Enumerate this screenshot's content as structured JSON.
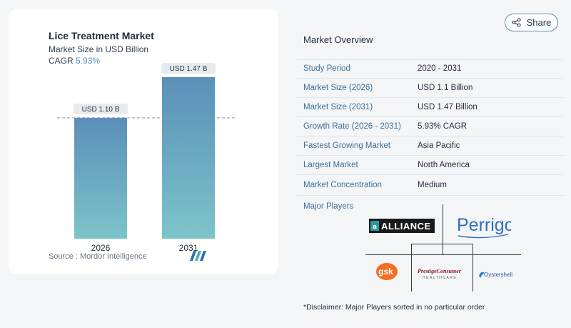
{
  "share": {
    "label": "Share",
    "icon": "share-icon"
  },
  "chart": {
    "title": "Lice Treatment Market",
    "subtitle": "Market Size in USD Billion",
    "cagr_label": "CAGR",
    "cagr_value": "5.93%",
    "source": "Source :  Mordor Intelligence",
    "colors": {
      "bar_top": "#5b8fb9",
      "bar_bottom": "#7cc4c9",
      "label_bg": "#e6ebef"
    }
  },
  "chart_data": {
    "type": "bar",
    "categories": [
      "2026",
      "2031"
    ],
    "values": [
      1.1,
      1.47
    ],
    "data_labels": [
      "USD 1.10 B",
      "USD 1.47 B"
    ],
    "title": "Lice Treatment Market",
    "subtitle": "Market Size in USD Billion",
    "xlabel": "",
    "ylabel": "",
    "ylim": [
      0,
      1.6
    ],
    "grid": false,
    "reference_line": 1.1
  },
  "overview": {
    "title": "Market Overview",
    "rows": [
      {
        "label": "Study Period",
        "value": "2020 - 2031"
      },
      {
        "label": "Market Size (2026)",
        "value": "USD 1.1 Billion"
      },
      {
        "label": "Market Size (2031)",
        "value": "USD 1.47 Billion"
      },
      {
        "label": "Growth Rate (2026 - 2031)",
        "value": "5.93% CAGR"
      },
      {
        "label": "Fastest Growing Market",
        "value": "Asia Pacific"
      },
      {
        "label": "Largest Market",
        "value": "North America"
      },
      {
        "label": "Market Concentration",
        "value": "Medium"
      }
    ]
  },
  "players": {
    "title": "Major Players",
    "logos": {
      "alliance": "ALLIANCE",
      "perrigo": "Perrigo",
      "gsk": "gsk",
      "prestige_main": "PrestigeConsumer",
      "prestige_sub": "HEALTHCARE",
      "oystershell": "Oystershell"
    }
  },
  "disclaimer": "*Disclaimer: Major Players sorted in no particular order"
}
